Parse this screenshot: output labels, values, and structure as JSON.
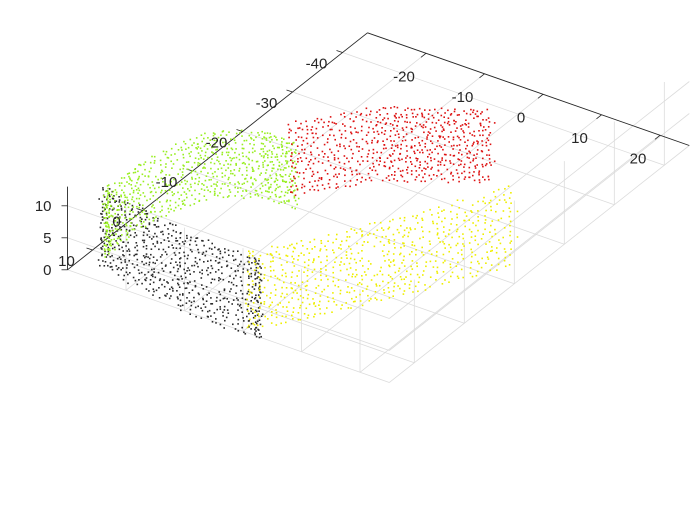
{
  "chart_data": {
    "type": "scatter3d",
    "title": "",
    "xlabel": "",
    "ylabel": "",
    "zlabel": "",
    "xlim": [
      -30,
      25
    ],
    "ylim": [
      -45,
      15
    ],
    "zlim": [
      0,
      13
    ],
    "x_ticks": [
      -20,
      -10,
      0,
      10,
      20
    ],
    "y_ticks": [
      -40,
      -30,
      -20,
      -10,
      0,
      10
    ],
    "z_ticks": [
      0,
      5,
      10
    ],
    "x_tick_labels": [
      "-20",
      "-10",
      "0",
      "10",
      "20"
    ],
    "y_tick_labels": [
      "-40",
      "-30",
      "-20",
      "-10",
      "0",
      "10"
    ],
    "z_tick_labels": [
      "0",
      "5",
      "10"
    ],
    "grid": true,
    "box": false,
    "legend": "none",
    "series": [
      {
        "color": "#2b2b2b",
        "shape": "curved wall",
        "x_range": [
          -27,
          3
        ],
        "y_range": [
          12,
          15
        ],
        "z_range": [
          0,
          12
        ],
        "points": [
          [
            -27,
            12,
            8
          ],
          [
            -27,
            12,
            4
          ],
          [
            -25,
            12,
            11
          ],
          [
            -25,
            12,
            6
          ],
          [
            -22,
            13,
            10
          ],
          [
            -22,
            13,
            3
          ],
          [
            -19,
            13,
            12
          ],
          [
            -19,
            13,
            7
          ],
          [
            -16,
            14,
            11
          ],
          [
            -16,
            14,
            5
          ],
          [
            -13,
            14,
            12
          ],
          [
            -13,
            14,
            2
          ],
          [
            -10,
            15,
            11
          ],
          [
            -10,
            15,
            6
          ],
          [
            -7,
            15,
            12
          ],
          [
            -7,
            15,
            3
          ],
          [
            -4,
            15,
            11
          ],
          [
            -4,
            15,
            7
          ],
          [
            -1,
            15,
            10
          ],
          [
            -1,
            15,
            4
          ],
          [
            2,
            15,
            12
          ],
          [
            2,
            15,
            6
          ],
          [
            3,
            15,
            9
          ]
        ]
      },
      {
        "color": "#99ee22",
        "shape": "curved wall",
        "x_range": [
          -30,
          -10
        ],
        "y_range": [
          -10,
          12
        ],
        "z_range": [
          0,
          10
        ],
        "points": [
          [
            -28,
            10,
            8
          ],
          [
            -28,
            9,
            3
          ],
          [
            -28,
            6,
            6
          ],
          [
            -28,
            3,
            2
          ],
          [
            -27,
            0,
            7
          ],
          [
            -26,
            -3,
            4
          ],
          [
            -25,
            -5,
            9
          ],
          [
            -24,
            -7,
            3
          ],
          [
            -22,
            -8,
            6
          ],
          [
            -20,
            -9,
            4
          ],
          [
            -18,
            -10,
            7
          ],
          [
            -16,
            -10,
            3
          ],
          [
            -14,
            -10,
            8
          ],
          [
            -12,
            -10,
            5
          ]
        ]
      },
      {
        "color": "#dd1111",
        "shape": "curved wall",
        "x_range": [
          -16,
          10
        ],
        "y_range": [
          -28,
          -5
        ],
        "z_range": [
          0,
          11
        ],
        "points": [
          [
            -15,
            -12,
            10
          ],
          [
            -15,
            -12,
            6
          ],
          [
            -13,
            -14,
            9
          ],
          [
            -13,
            -14,
            3
          ],
          [
            -11,
            -16,
            10
          ],
          [
            -11,
            -16,
            5
          ],
          [
            -9,
            -18,
            8
          ],
          [
            -9,
            -18,
            2
          ],
          [
            -7,
            -20,
            9
          ],
          [
            -7,
            -20,
            6
          ],
          [
            -5,
            -21,
            10
          ],
          [
            -5,
            -21,
            3
          ],
          [
            -3,
            -22,
            8
          ],
          [
            -3,
            -22,
            5
          ],
          [
            -1,
            -23,
            7
          ],
          [
            -1,
            -23,
            2
          ],
          [
            1,
            -24,
            9
          ],
          [
            1,
            -24,
            4
          ],
          [
            3,
            -25,
            8
          ],
          [
            3,
            -25,
            3
          ],
          [
            5,
            -26,
            10
          ],
          [
            5,
            -26,
            6
          ],
          [
            7,
            -27,
            9
          ],
          [
            7,
            -27,
            3
          ]
        ]
      },
      {
        "color": "#eeee00",
        "shape": "curved wall",
        "x_range": [
          -3,
          25
        ],
        "y_range": [
          -20,
          15
        ],
        "z_range": [
          0,
          12
        ],
        "points": [
          [
            0,
            14,
            12
          ],
          [
            0,
            14,
            6
          ],
          [
            2,
            12,
            11
          ],
          [
            2,
            12,
            3
          ],
          [
            4,
            10,
            10
          ],
          [
            4,
            10,
            5
          ],
          [
            6,
            8,
            9
          ],
          [
            6,
            8,
            2
          ],
          [
            8,
            5,
            10
          ],
          [
            8,
            5,
            6
          ],
          [
            10,
            3,
            11
          ],
          [
            10,
            3,
            4
          ],
          [
            12,
            0,
            9
          ],
          [
            12,
            0,
            5
          ],
          [
            14,
            -2,
            10
          ],
          [
            14,
            -2,
            3
          ],
          [
            16,
            -5,
            8
          ],
          [
            16,
            -5,
            2
          ],
          [
            18,
            -8,
            9
          ],
          [
            18,
            -8,
            5
          ],
          [
            20,
            -11,
            7
          ],
          [
            20,
            -11,
            3
          ],
          [
            22,
            -14,
            8
          ],
          [
            22,
            -14,
            4
          ]
        ]
      }
    ]
  }
}
